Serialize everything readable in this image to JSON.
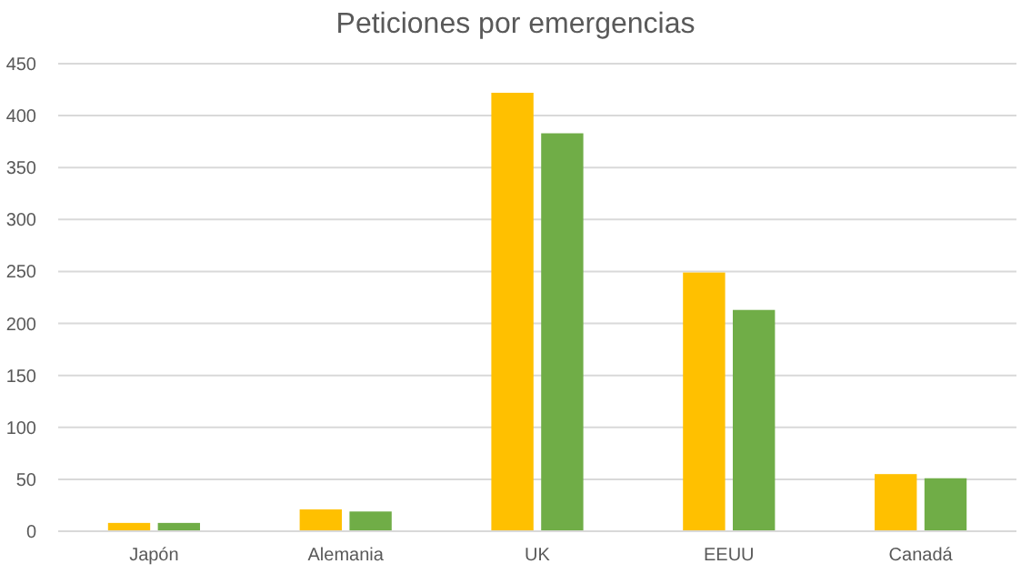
{
  "chart_data": {
    "type": "bar",
    "title": "Peticiones por emergencias",
    "categories": [
      "Japón",
      "Alemania",
      "UK",
      "EEUU",
      "Canadá"
    ],
    "series": [
      {
        "color": "#ffc000",
        "values": [
          8,
          21,
          422,
          249,
          55
        ]
      },
      {
        "color": "#70ad47",
        "values": [
          8,
          19,
          383,
          213,
          51
        ]
      }
    ],
    "ylim": [
      0,
      450
    ],
    "yticks": [
      0,
      50,
      100,
      150,
      200,
      250,
      300,
      350,
      400,
      450
    ],
    "grid": "y"
  }
}
